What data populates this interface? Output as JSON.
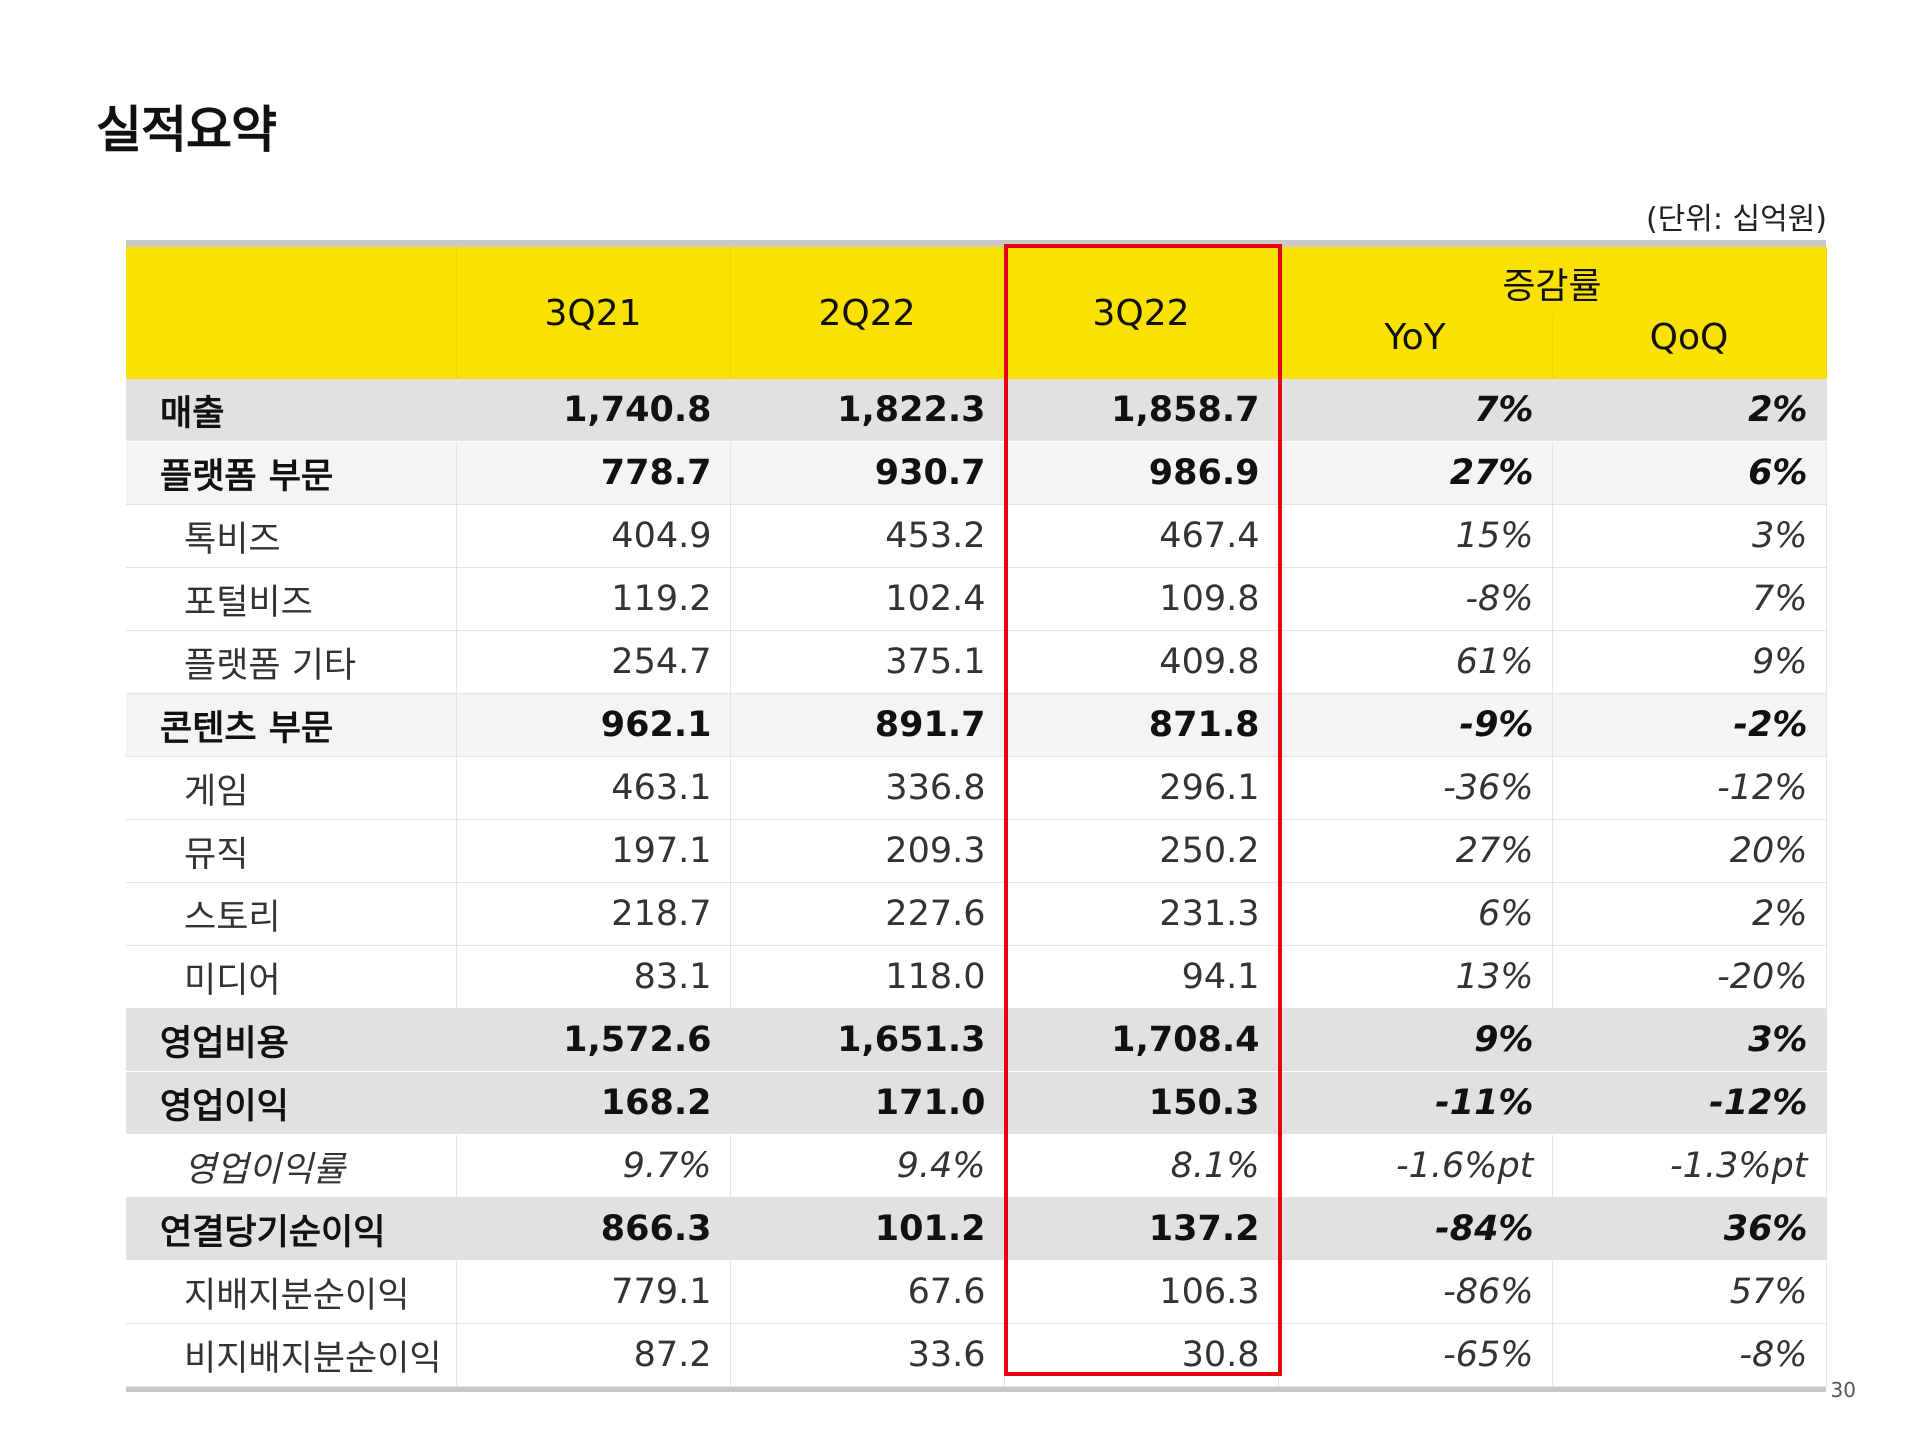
{
  "title": "실적요약",
  "unit": "(단위: 십억원)",
  "page_number": "30",
  "header": {
    "periods": [
      "3Q21",
      "2Q22",
      "3Q22"
    ],
    "change_group": "증감률",
    "change_cols": [
      "YoY",
      "QoQ"
    ]
  },
  "rows": [
    {
      "label": "매출",
      "level": "major",
      "values": [
        "1,740.8",
        "1,822.3",
        "1,858.7"
      ],
      "yoy": "7%",
      "qoq": "2%"
    },
    {
      "label": "플랫폼 부문",
      "level": "sub",
      "values": [
        "778.7",
        "930.7",
        "986.9"
      ],
      "yoy": "27%",
      "qoq": "6%"
    },
    {
      "label": "톡비즈",
      "level": "item",
      "values": [
        "404.9",
        "453.2",
        "467.4"
      ],
      "yoy": "15%",
      "qoq": "3%"
    },
    {
      "label": "포털비즈",
      "level": "item",
      "values": [
        "119.2",
        "102.4",
        "109.8"
      ],
      "yoy": "-8%",
      "qoq": "7%"
    },
    {
      "label": "플랫폼 기타",
      "level": "item",
      "values": [
        "254.7",
        "375.1",
        "409.8"
      ],
      "yoy": "61%",
      "qoq": "9%"
    },
    {
      "label": "콘텐츠 부문",
      "level": "sub",
      "values": [
        "962.1",
        "891.7",
        "871.8"
      ],
      "yoy": "-9%",
      "qoq": "-2%"
    },
    {
      "label": "게임",
      "level": "item",
      "values": [
        "463.1",
        "336.8",
        "296.1"
      ],
      "yoy": "-36%",
      "qoq": "-12%"
    },
    {
      "label": "뮤직",
      "level": "item",
      "values": [
        "197.1",
        "209.3",
        "250.2"
      ],
      "yoy": "27%",
      "qoq": "20%"
    },
    {
      "label": "스토리",
      "level": "item",
      "values": [
        "218.7",
        "227.6",
        "231.3"
      ],
      "yoy": "6%",
      "qoq": "2%"
    },
    {
      "label": "미디어",
      "level": "item",
      "values": [
        "83.1",
        "118.0",
        "94.1"
      ],
      "yoy": "13%",
      "qoq": "-20%"
    },
    {
      "label": "영업비용",
      "level": "major",
      "values": [
        "1,572.6",
        "1,651.3",
        "1,708.4"
      ],
      "yoy": "9%",
      "qoq": "3%"
    },
    {
      "label": "영업이익",
      "level": "major",
      "values": [
        "168.2",
        "171.0",
        "150.3"
      ],
      "yoy": "-11%",
      "qoq": "-12%"
    },
    {
      "label": "영업이익률",
      "level": "italic",
      "values": [
        "9.7%",
        "9.4%",
        "8.1%"
      ],
      "yoy": "-1.6%pt",
      "qoq": "-1.3%pt"
    },
    {
      "label": "연결당기순이익",
      "level": "major",
      "values": [
        "866.3",
        "101.2",
        "137.2"
      ],
      "yoy": "-84%",
      "qoq": "36%"
    },
    {
      "label": "지배지분순이익",
      "level": "item",
      "values": [
        "779.1",
        "67.6",
        "106.3"
      ],
      "yoy": "-86%",
      "qoq": "57%"
    },
    {
      "label": "비지배지분순이익",
      "level": "item",
      "values": [
        "87.2",
        "33.6",
        "30.8"
      ],
      "yoy": "-65%",
      "qoq": "-8%"
    }
  ]
}
